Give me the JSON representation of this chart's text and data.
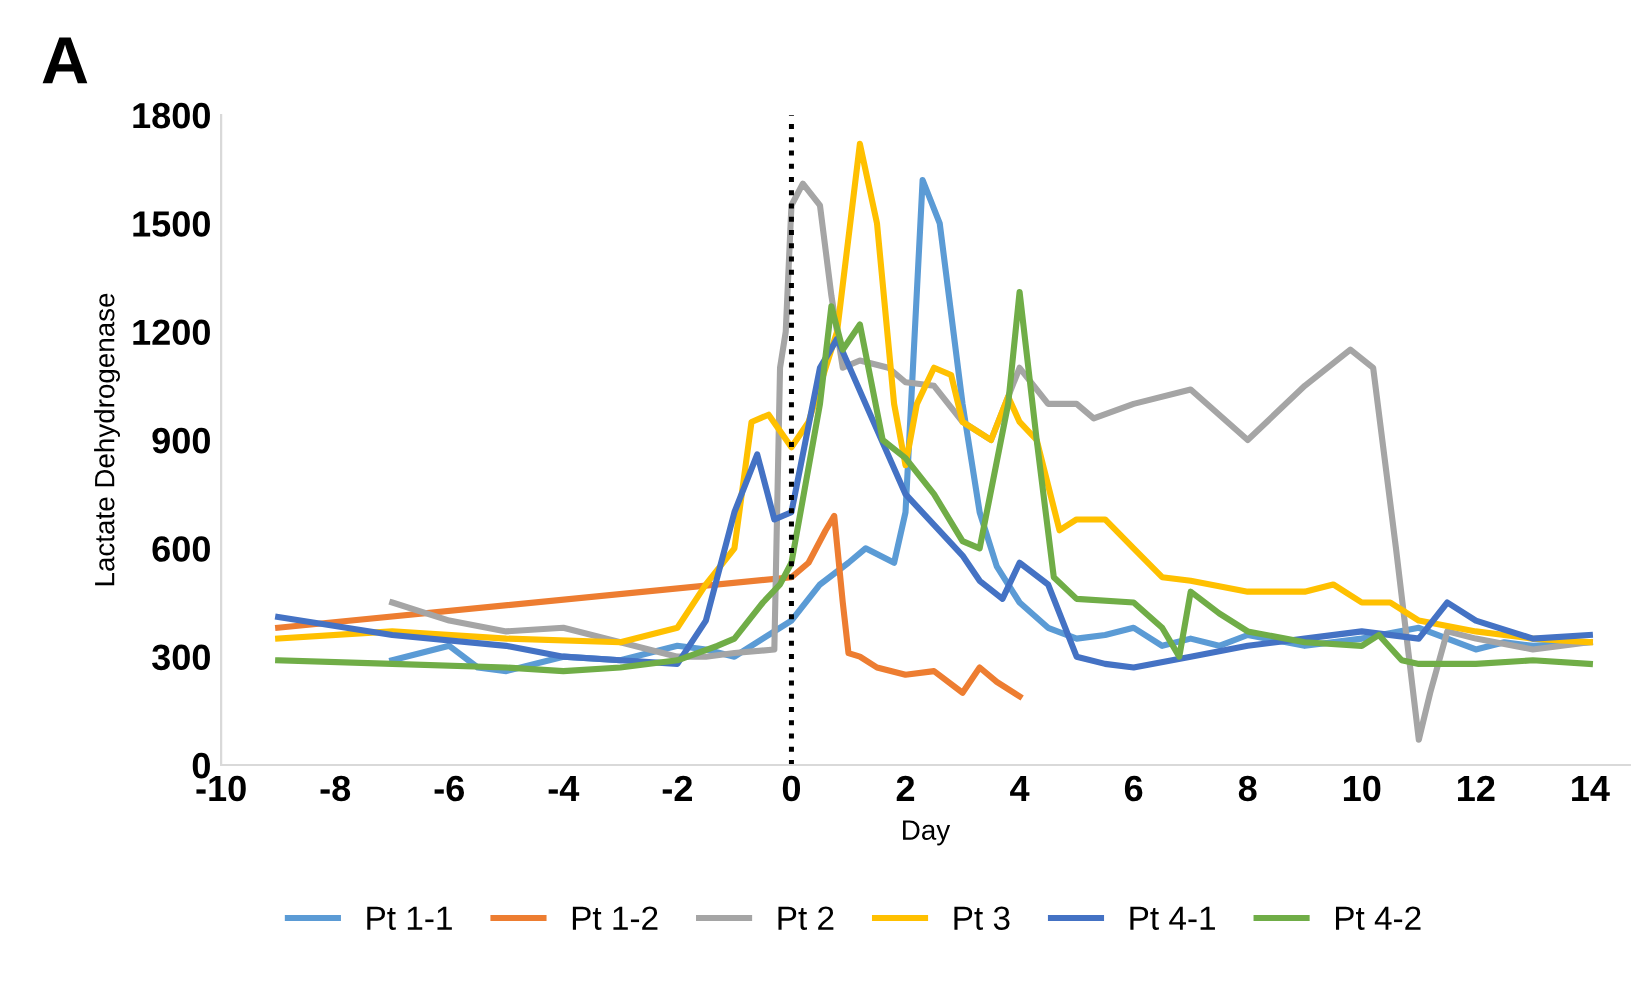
{
  "chart_data": {
    "type": "line",
    "xlabel": "Day",
    "ylabel": "Lactate Dehydrogenase",
    "annotations": [
      "A"
    ],
    "xlim": [
      -10,
      14.7
    ],
    "ylim": [
      0,
      1800
    ],
    "xticks": [
      -10,
      -8,
      -6,
      -4,
      -2,
      0,
      2,
      4,
      6,
      8,
      10,
      12,
      14
    ],
    "yticks": [
      0,
      300,
      600,
      900,
      1200,
      1500,
      1800
    ],
    "grid": false,
    "legend": "bottom",
    "marker": "none",
    "line_style": "solid",
    "ref_lines": [
      {
        "axis": "x",
        "value": 0,
        "color": "#000000",
        "line_style": "dotted"
      }
    ],
    "series": [
      {
        "name": "Pt 1-1",
        "color": "#5b9bd5",
        "x": [
          -7,
          -6,
          -5.5,
          -5,
          -4,
          -3,
          -2,
          -1.5,
          -1,
          0,
          0.5,
          1,
          1.3,
          1.8,
          2,
          2.3,
          2.6,
          3,
          3.3,
          3.6,
          4,
          4.5,
          5,
          5.5,
          6,
          6.5,
          7,
          7.5,
          8,
          9,
          10,
          11,
          12,
          12.5,
          13,
          14
        ],
        "values": [
          290,
          330,
          270,
          260,
          300,
          290,
          330,
          320,
          300,
          400,
          500,
          560,
          600,
          560,
          700,
          1620,
          1500,
          1000,
          700,
          550,
          450,
          380,
          350,
          360,
          380,
          330,
          350,
          330,
          360,
          330,
          350,
          380,
          320,
          340,
          330,
          340
        ]
      },
      {
        "name": "Pt 1-2",
        "color": "#ed7d31",
        "x": [
          -9,
          0,
          0.3,
          0.6,
          0.75,
          0.9,
          1,
          1.2,
          1.5,
          2,
          2.5,
          3,
          3.3,
          3.6,
          4
        ],
        "values": [
          380,
          520,
          560,
          650,
          690,
          450,
          310,
          300,
          270,
          250,
          260,
          200,
          270,
          230,
          190
        ]
      },
      {
        "name": "Pt 2",
        "color": "#a5a5a5",
        "x": [
          -7,
          -6,
          -5,
          -4,
          -3,
          -2,
          -1.5,
          -1,
          -0.3,
          -0.2,
          -0.1,
          0,
          0.2,
          0.5,
          0.7,
          0.9,
          1.2,
          1.7,
          2,
          2.5,
          3,
          3.5,
          4,
          4.5,
          5,
          5.3,
          6,
          7,
          8,
          9,
          9.8,
          10.2,
          10.6,
          11,
          11.2,
          11.5,
          12,
          13,
          14
        ],
        "values": [
          450,
          400,
          370,
          380,
          340,
          300,
          300,
          310,
          320,
          1100,
          1200,
          1550,
          1610,
          1550,
          1300,
          1100,
          1120,
          1100,
          1060,
          1050,
          950,
          900,
          1100,
          1000,
          1000,
          960,
          1000,
          1040,
          900,
          1050,
          1150,
          1100,
          600,
          70,
          200,
          370,
          350,
          320,
          340
        ]
      },
      {
        "name": "Pt 3",
        "color": "#ffc000",
        "x": [
          -9,
          -7,
          -5,
          -3,
          -2,
          -1.5,
          -1,
          -0.7,
          -0.4,
          0,
          0.3,
          0.8,
          1.2,
          1.5,
          1.8,
          2,
          2.2,
          2.5,
          2.8,
          3,
          3.5,
          3.8,
          4,
          4.3,
          4.7,
          5,
          5.5,
          6,
          6.5,
          7,
          8,
          9,
          9.5,
          10,
          10.5,
          11,
          12,
          13,
          14
        ],
        "values": [
          350,
          370,
          350,
          340,
          380,
          500,
          600,
          950,
          970,
          880,
          950,
          1200,
          1720,
          1500,
          1000,
          830,
          1000,
          1100,
          1080,
          950,
          900,
          1020,
          950,
          900,
          650,
          680,
          680,
          600,
          520,
          510,
          480,
          480,
          500,
          450,
          450,
          400,
          370,
          350,
          340
        ]
      },
      {
        "name": "Pt 4-1",
        "color": "#4472c4",
        "x": [
          -9,
          -7,
          -5,
          -4,
          -3,
          -2,
          -1.5,
          -1,
          -0.6,
          -0.3,
          0,
          0.5,
          0.8,
          1.3,
          2,
          3,
          3.3,
          3.7,
          4,
          4.5,
          5,
          5.5,
          6,
          7,
          8,
          9,
          10,
          11,
          11.5,
          12,
          13,
          14
        ],
        "values": [
          410,
          360,
          330,
          300,
          290,
          280,
          400,
          700,
          860,
          680,
          700,
          1100,
          1180,
          1000,
          750,
          580,
          510,
          460,
          560,
          500,
          300,
          280,
          270,
          300,
          330,
          350,
          370,
          350,
          450,
          400,
          350,
          360
        ]
      },
      {
        "name": "Pt 4-2",
        "color": "#70ad47",
        "x": [
          -9,
          -7,
          -5,
          -4,
          -3,
          -2,
          -1.3,
          -1,
          -0.5,
          -0.2,
          0,
          0.5,
          0.7,
          0.9,
          1.2,
          1.6,
          2,
          2.5,
          3,
          3.3,
          3.8,
          4,
          4.3,
          4.6,
          5,
          6,
          6.5,
          6.8,
          7,
          7.5,
          8,
          9,
          10,
          10.3,
          10.7,
          11,
          12,
          13,
          14
        ],
        "values": [
          290,
          280,
          270,
          260,
          270,
          290,
          330,
          350,
          450,
          500,
          560,
          1000,
          1270,
          1150,
          1220,
          900,
          850,
          750,
          620,
          600,
          1000,
          1310,
          900,
          520,
          460,
          450,
          380,
          300,
          480,
          420,
          370,
          340,
          330,
          360,
          290,
          280,
          280,
          290,
          280
        ]
      }
    ]
  }
}
